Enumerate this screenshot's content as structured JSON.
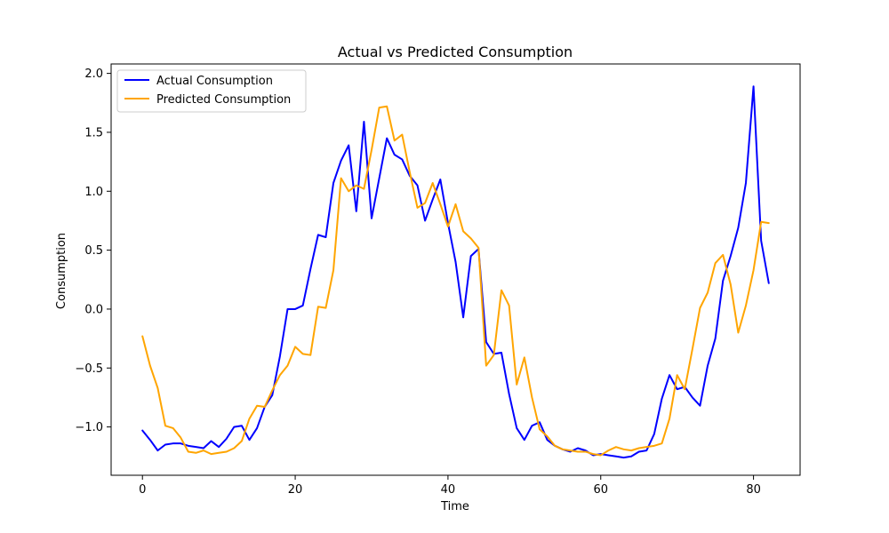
{
  "chart_data": {
    "type": "line",
    "title": "Actual vs Predicted Consumption",
    "xlabel": "Time",
    "ylabel": "Consumption",
    "xlim": [
      -4.1,
      86.1
    ],
    "ylim": [
      -1.41,
      2.08
    ],
    "xticks": [
      0,
      20,
      40,
      60,
      80
    ],
    "xtick_labels": [
      "0",
      "20",
      "40",
      "60",
      "80"
    ],
    "yticks": [
      -1.0,
      -0.5,
      0.0,
      0.5,
      1.0,
      1.5,
      2.0
    ],
    "ytick_labels": [
      "−1.0",
      "−0.5",
      "0.0",
      "0.5",
      "1.0",
      "1.5",
      "2.0"
    ],
    "grid": false,
    "legend_position": "top-left",
    "x": [
      0,
      1,
      2,
      3,
      4,
      5,
      6,
      7,
      8,
      9,
      10,
      11,
      12,
      13,
      14,
      15,
      16,
      17,
      18,
      19,
      20,
      21,
      22,
      23,
      24,
      25,
      26,
      27,
      28,
      29,
      30,
      31,
      32,
      33,
      34,
      35,
      36,
      37,
      38,
      39,
      40,
      41,
      42,
      43,
      44,
      45,
      46,
      47,
      48,
      49,
      50,
      51,
      52,
      53,
      54,
      55,
      56,
      57,
      58,
      59,
      60,
      61,
      62,
      63,
      64,
      65,
      66,
      67,
      68,
      69,
      70,
      71,
      72,
      73,
      74,
      75,
      76,
      77,
      78,
      79,
      80,
      81,
      82
    ],
    "series": [
      {
        "name": "Actual Consumption",
        "color": "#0000ff",
        "values": [
          -1.03,
          -1.11,
          -1.2,
          -1.15,
          -1.14,
          -1.14,
          -1.16,
          -1.17,
          -1.18,
          -1.12,
          -1.17,
          -1.1,
          -1.0,
          -0.99,
          -1.11,
          -1.01,
          -0.83,
          -0.73,
          -0.4,
          0.0,
          0.0,
          0.03,
          0.34,
          0.63,
          0.61,
          1.07,
          1.26,
          1.39,
          0.83,
          1.59,
          0.77,
          1.11,
          1.45,
          1.31,
          1.27,
          1.13,
          1.05,
          0.75,
          0.93,
          1.1,
          0.73,
          0.4,
          -0.07,
          0.45,
          0.51,
          -0.28,
          -0.38,
          -0.37,
          -0.72,
          -1.01,
          -1.11,
          -0.99,
          -0.96,
          -1.11,
          -1.16,
          -1.19,
          -1.21,
          -1.18,
          -1.2,
          -1.24,
          -1.23,
          -1.24,
          -1.25,
          -1.26,
          -1.25,
          -1.21,
          -1.2,
          -1.06,
          -0.76,
          -0.56,
          -0.68,
          -0.66,
          -0.75,
          -0.82,
          -0.48,
          -0.25,
          0.24,
          0.45,
          0.69,
          1.07,
          1.89,
          0.58,
          0.22
        ]
      },
      {
        "name": "Predicted Consumption",
        "color": "#ffa500",
        "values": [
          -0.23,
          -0.48,
          -0.67,
          -0.99,
          -1.01,
          -1.09,
          -1.21,
          -1.22,
          -1.2,
          -1.23,
          -1.22,
          -1.21,
          -1.18,
          -1.12,
          -0.93,
          -0.82,
          -0.83,
          -0.69,
          -0.56,
          -0.48,
          -0.32,
          -0.38,
          -0.39,
          0.02,
          0.01,
          0.33,
          1.11,
          1.0,
          1.05,
          1.02,
          1.35,
          1.71,
          1.72,
          1.43,
          1.48,
          1.16,
          0.86,
          0.9,
          1.07,
          0.89,
          0.7,
          0.89,
          0.66,
          0.6,
          0.52,
          -0.48,
          -0.39,
          0.16,
          0.03,
          -0.64,
          -0.41,
          -0.75,
          -1.02,
          -1.08,
          -1.16,
          -1.19,
          -1.2,
          -1.21,
          -1.21,
          -1.23,
          -1.24,
          -1.2,
          -1.17,
          -1.19,
          -1.2,
          -1.18,
          -1.17,
          -1.16,
          -1.14,
          -0.93,
          -0.56,
          -0.68,
          -0.34,
          0.01,
          0.14,
          0.39,
          0.46,
          0.21,
          -0.2,
          0.03,
          0.33,
          0.74,
          0.73
        ]
      }
    ]
  }
}
